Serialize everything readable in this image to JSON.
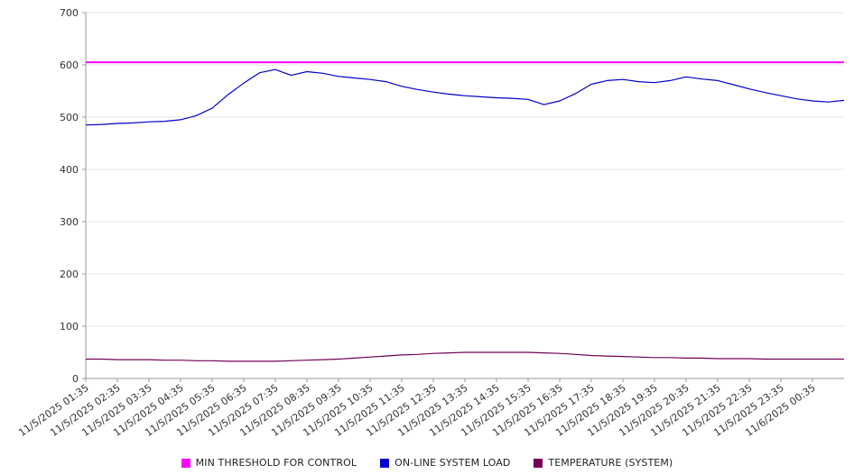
{
  "chart_data": {
    "type": "line",
    "title": "",
    "xlabel": "",
    "ylabel": "",
    "ylim": [
      0,
      700
    ],
    "yticks": [
      0,
      100,
      200,
      300,
      400,
      500,
      600,
      700
    ],
    "grid": "horizontal",
    "legend_position": "bottom",
    "tick_every_n_points": 2,
    "categories": [
      "11/5/2025 01:35",
      "11/5/2025 02:35",
      "11/5/2025 03:35",
      "11/5/2025 04:35",
      "11/5/2025 05:35",
      "11/5/2025 06:35",
      "11/5/2025 07:35",
      "11/5/2025 08:35",
      "11/5/2025 09:35",
      "11/5/2025 10:35",
      "11/5/2025 11:35",
      "11/5/2025 12:35",
      "11/5/2025 13:35",
      "11/5/2025 14:35",
      "11/5/2025 15:35",
      "11/5/2025 16:35",
      "11/5/2025 17:35",
      "11/5/2025 18:35",
      "11/5/2025 19:35",
      "11/5/2025 20:35",
      "11/5/2025 21:35",
      "11/5/2025 22:35",
      "11/5/2025 23:35",
      "11/6/2025 00:35"
    ],
    "series": [
      {
        "name": "MIN THRESHOLD FOR CONTROL",
        "color": "#ff00ff",
        "width": 2,
        "values": [
          605,
          605
        ]
      },
      {
        "name": "ON-LINE SYSTEM LOAD",
        "color": "#0000cc",
        "width": 1.2,
        "values": [
          485,
          486,
          488,
          489,
          491,
          492,
          495,
          503,
          517,
          543,
          565,
          585,
          591,
          580,
          587,
          584,
          578,
          575,
          572,
          568,
          559,
          553,
          548,
          544,
          541,
          539,
          537,
          536,
          534,
          524,
          531,
          545,
          563,
          570,
          572,
          568,
          566,
          570,
          577,
          573,
          570,
          562,
          554,
          547,
          541,
          535,
          531,
          529,
          532
        ]
      },
      {
        "name": "TEMPERATURE (SYSTEM)",
        "color": "#730057",
        "width": 1.2,
        "values": [
          37,
          37,
          36,
          36,
          36,
          35,
          35,
          34,
          34,
          33,
          33,
          33,
          33,
          34,
          35,
          36,
          37,
          39,
          41,
          43,
          45,
          46,
          48,
          49,
          50,
          50,
          50,
          50,
          50,
          49,
          48,
          46,
          44,
          43,
          42,
          41,
          40,
          40,
          39,
          39,
          38,
          38,
          38,
          37,
          37,
          37,
          37,
          37,
          37
        ]
      }
    ]
  },
  "axis": {
    "text_color": "#333333",
    "grid_color": "#e6e6e6",
    "axis_color": "#9a9a9a"
  }
}
